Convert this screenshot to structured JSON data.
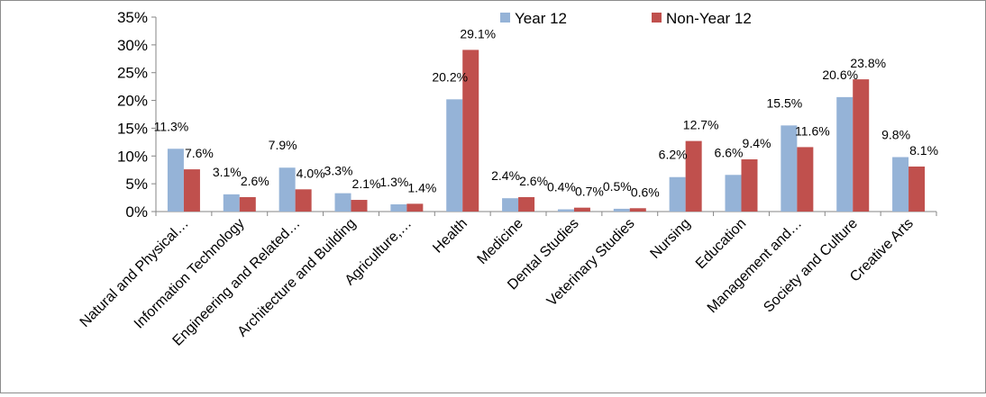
{
  "chart_data": {
    "type": "bar",
    "title": "",
    "xlabel": "",
    "ylabel": "",
    "ylim": [
      0,
      35
    ],
    "y_ticks": [
      "0%",
      "5%",
      "10%",
      "15%",
      "20%",
      "25%",
      "30%",
      "35%"
    ],
    "categories": [
      "Natural and Physical…",
      "Information Technology",
      "Engineering and Related…",
      "Architecture and Building",
      "Agriculture,…",
      "Health",
      "Medicine",
      "Dental Studies",
      "Veterinary Studies",
      "Nursing",
      "Education",
      "Management and…",
      "Society and Culture",
      "Creative Arts"
    ],
    "series": [
      {
        "name": "Year 12",
        "color": "#95b3d7",
        "values": [
          11.3,
          3.1,
          7.9,
          3.3,
          1.3,
          20.2,
          2.4,
          0.4,
          0.5,
          6.2,
          6.6,
          15.5,
          20.6,
          9.8
        ],
        "labels": [
          "11.3%",
          "3.1%",
          "7.9%",
          "3.3%",
          "1.3%",
          "20.2%",
          "2.4%",
          "0.4%",
          "0.5%",
          "6.2%",
          "6.6%",
          "15.5%",
          "20.6%",
          "9.8%"
        ]
      },
      {
        "name": "Non-Year 12",
        "color": "#c0504d",
        "values": [
          7.6,
          2.6,
          4.0,
          2.1,
          1.4,
          29.1,
          2.6,
          0.7,
          0.6,
          12.7,
          9.4,
          11.6,
          23.8,
          8.1
        ],
        "labels": [
          "7.6%",
          "2.6%",
          "4.0%",
          "2.1%",
          "1.4%",
          "29.1%",
          "2.6%",
          "0.7%",
          "0.6%",
          "12.7%",
          "9.4%",
          "11.6%",
          "23.8%",
          "8.1%"
        ]
      }
    ],
    "legend_position": "top",
    "grid": false
  }
}
